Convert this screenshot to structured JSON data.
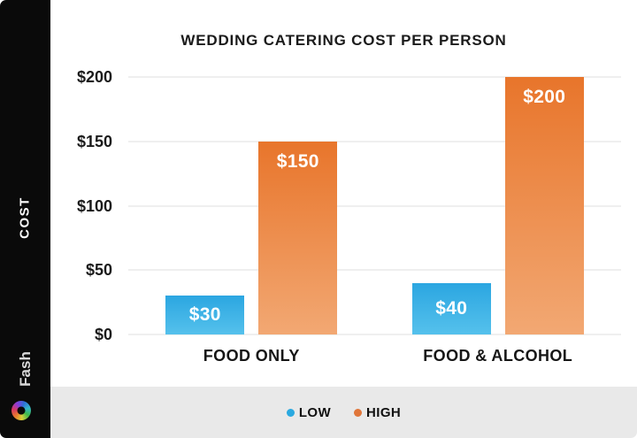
{
  "sidebar": {
    "axis_label": "COST",
    "brand_name": "Fash"
  },
  "chart_data": {
    "type": "bar",
    "title": "WEDDING CATERING COST PER PERSON",
    "categories": [
      "FOOD ONLY",
      "FOOD & ALCOHOL"
    ],
    "series": [
      {
        "name": "LOW",
        "values": [
          30,
          40
        ],
        "value_labels": [
          "$30",
          "$40"
        ],
        "color_top": "#2ba6e1",
        "color_bottom": "#55c1ec",
        "legend_dot": "#2aa9e0"
      },
      {
        "name": "HIGH",
        "values": [
          150,
          200
        ],
        "value_labels": [
          "$150",
          "$200"
        ],
        "color_top": "#e8752b",
        "color_bottom": "#f2a873",
        "legend_dot": "#e0763a"
      }
    ],
    "ylabel": "COST",
    "ylim": [
      0,
      200
    ],
    "yticks": [
      {
        "value": 0,
        "label": "$0"
      },
      {
        "value": 50,
        "label": "$50"
      },
      {
        "value": 100,
        "label": "$100"
      },
      {
        "value": 150,
        "label": "$150"
      },
      {
        "value": 200,
        "label": "$200"
      }
    ],
    "grid": true,
    "legend_position": "bottom"
  },
  "colors": {
    "sidebar_bg": "#0a0a0a",
    "legend_strip_bg": "#e9e9e9",
    "gridline": "#efefef",
    "text": "#1b1b1b",
    "bar_low": "#2aa9e0",
    "bar_high": "#e8762c"
  }
}
